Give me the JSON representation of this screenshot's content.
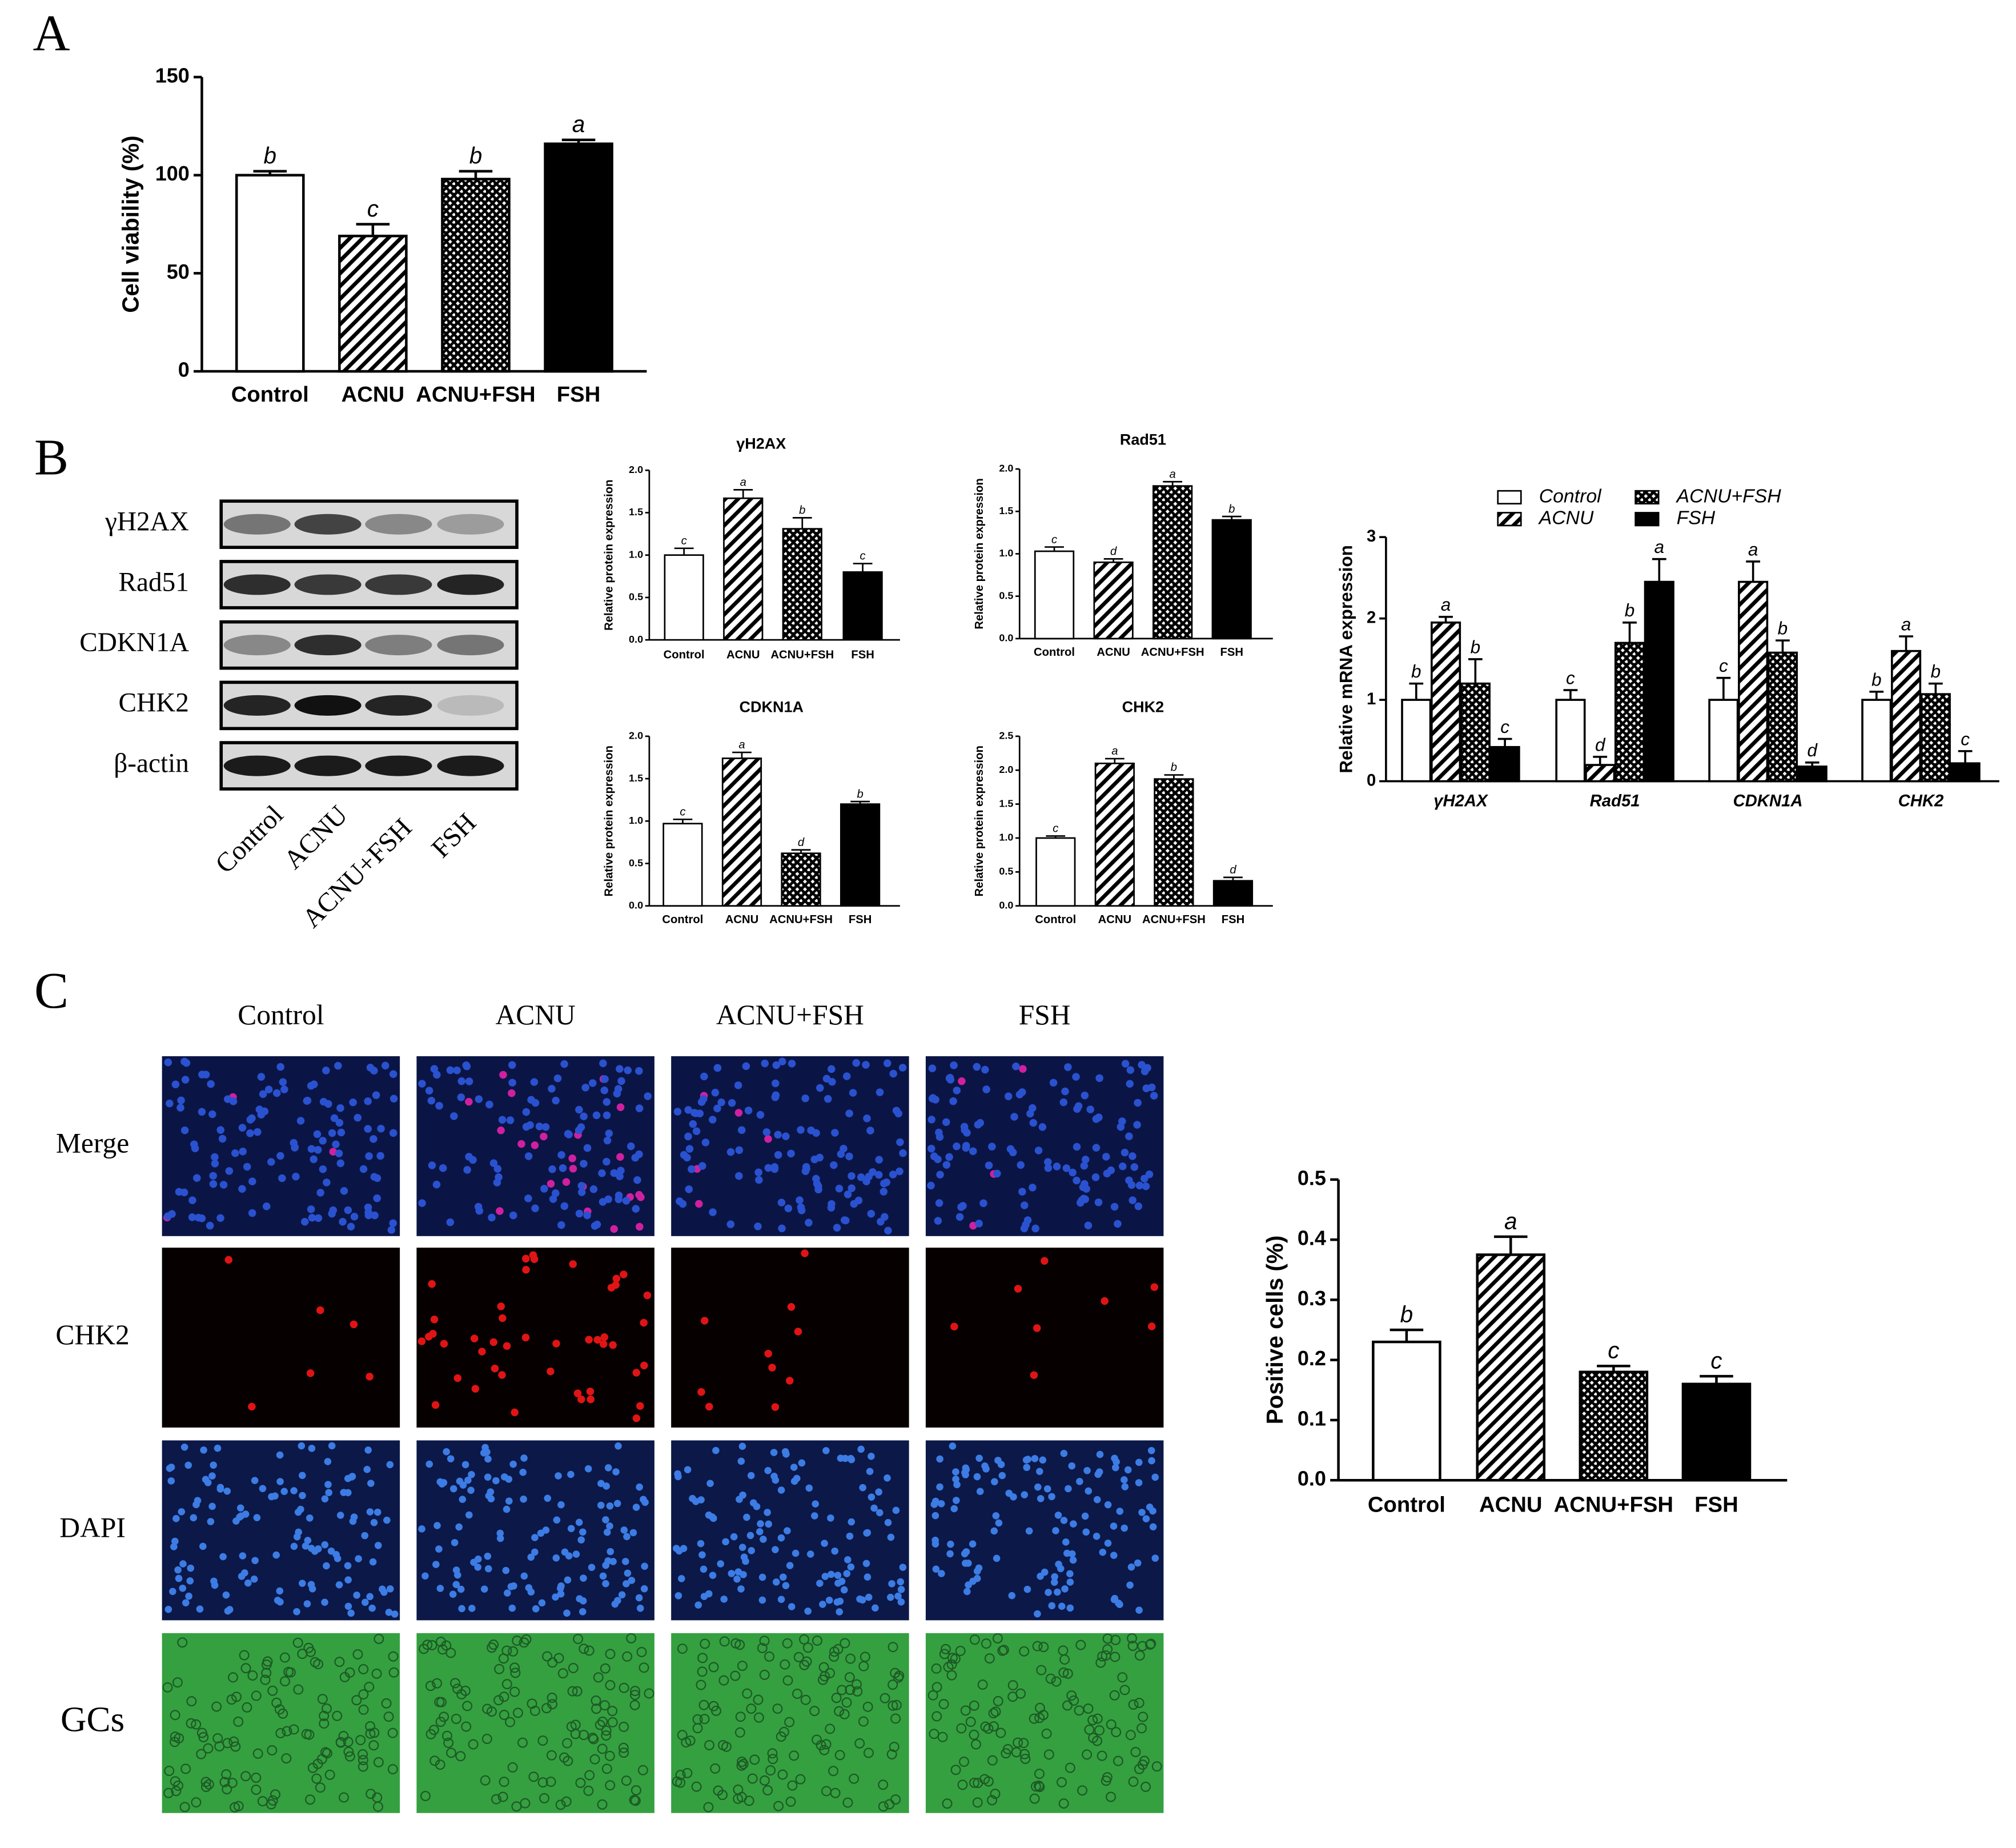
{
  "panel_labels": [
    "A",
    "B",
    "C"
  ],
  "western_blot": {
    "proteins": [
      "γH2AX",
      "Rad51",
      "CDKN1A",
      "CHK2",
      "β-actin"
    ],
    "lanes": [
      "Control",
      "ACNU",
      "ACNU+FSH",
      "FSH"
    ]
  },
  "micrographs": {
    "columns": [
      "Control",
      "ACNU",
      "ACNU+FSH",
      "FSH"
    ],
    "rows": [
      "Merge",
      "CHK2",
      "DAPI",
      "GCs"
    ]
  },
  "chart_data": [
    {
      "type": "bar",
      "y_label": "Cell viability (%)",
      "categories": [
        "Control",
        "ACNU",
        "ACNU+FSH",
        "FSH"
      ],
      "values": [
        100,
        69,
        98,
        116
      ],
      "errors": [
        2,
        6,
        4,
        2
      ],
      "letters": [
        "b",
        "c",
        "b",
        "a"
      ],
      "patterns": [
        "open",
        "hatch",
        "cross",
        "solid"
      ],
      "ylim": [
        0,
        150
      ],
      "yticks": [
        0,
        50,
        100,
        150
      ]
    },
    {
      "type": "bar",
      "title": "γH2AX",
      "y_label": "Relative protein expression",
      "categories": [
        "Control",
        "ACNU",
        "ACNU+FSH",
        "FSH"
      ],
      "values": [
        1.0,
        1.67,
        1.31,
        0.8
      ],
      "errors": [
        0.08,
        0.1,
        0.13,
        0.1
      ],
      "letters": [
        "c",
        "a",
        "b",
        "c"
      ],
      "patterns": [
        "open",
        "hatch",
        "cross",
        "solid"
      ],
      "ylim": [
        0,
        2
      ],
      "yticks": [
        {
          "value": 0,
          "label": "0.0"
        },
        0.5,
        {
          "value": 1,
          "label": "1.0"
        },
        1.5,
        {
          "value": 2,
          "label": "2.0"
        }
      ]
    },
    {
      "type": "bar",
      "title": "Rad51",
      "y_label": "Relative protein expression",
      "categories": [
        "Control",
        "ACNU",
        "ACNU+FSH",
        "FSH"
      ],
      "values": [
        1.03,
        0.9,
        1.8,
        1.4
      ],
      "errors": [
        0.05,
        0.04,
        0.05,
        0.04
      ],
      "letters": [
        "c",
        "d",
        "a",
        "b"
      ],
      "patterns": [
        "open",
        "hatch",
        "cross",
        "solid"
      ],
      "ylim": [
        0,
        2
      ],
      "yticks": [
        {
          "value": 0,
          "label": "0.0"
        },
        0.5,
        {
          "value": 1,
          "label": "1.0"
        },
        1.5,
        {
          "value": 2,
          "label": "2.0"
        }
      ]
    },
    {
      "type": "bar",
      "title": "CDKN1A",
      "y_label": "Relative protein expression",
      "categories": [
        "Control",
        "ACNU",
        "ACNU+FSH",
        "FSH"
      ],
      "values": [
        0.97,
        1.74,
        0.62,
        1.2
      ],
      "errors": [
        0.05,
        0.07,
        0.04,
        0.03
      ],
      "letters": [
        "c",
        "a",
        "d",
        "b"
      ],
      "patterns": [
        "open",
        "hatch",
        "cross",
        "solid"
      ],
      "ylim": [
        0,
        2
      ],
      "yticks": [
        {
          "value": 0,
          "label": "0.0"
        },
        0.5,
        {
          "value": 1,
          "label": "1.0"
        },
        1.5,
        {
          "value": 2,
          "label": "2.0"
        }
      ]
    },
    {
      "type": "bar",
      "title": "CHK2",
      "y_label": "Relative protein expression",
      "categories": [
        "Control",
        "ACNU",
        "ACNU+FSH",
        "FSH"
      ],
      "values": [
        1.0,
        2.1,
        1.87,
        0.37
      ],
      "errors": [
        0.03,
        0.07,
        0.06,
        0.05
      ],
      "letters": [
        "c",
        "a",
        "b",
        "d"
      ],
      "patterns": [
        "open",
        "hatch",
        "cross",
        "solid"
      ],
      "ylim": [
        0,
        2.5
      ],
      "yticks": [
        {
          "value": 0,
          "label": "0.0"
        },
        0.5,
        {
          "value": 1,
          "label": "1.0"
        },
        1.5,
        {
          "value": 2,
          "label": "2.0"
        },
        2.5
      ]
    },
    {
      "type": "grouped_bar",
      "y_label": "Relative mRNA expression",
      "categories": [
        "γH2AX",
        "Rad51",
        "CDKN1A",
        "CHK2"
      ],
      "series": [
        {
          "name": "Control",
          "pattern": "open",
          "values": [
            1.0,
            1.0,
            1.0,
            1.0
          ],
          "errors": [
            0.2,
            0.12,
            0.27,
            0.1
          ],
          "letters": [
            "b",
            "c",
            "c",
            "b"
          ]
        },
        {
          "name": "ACNU",
          "pattern": "hatch",
          "values": [
            1.95,
            0.2,
            2.45,
            1.6
          ],
          "errors": [
            0.07,
            0.1,
            0.25,
            0.18
          ],
          "letters": [
            "a",
            "d",
            "a",
            "a"
          ]
        },
        {
          "name": "ACNU+FSH",
          "pattern": "cross",
          "values": [
            1.2,
            1.7,
            1.58,
            1.07
          ],
          "errors": [
            0.3,
            0.25,
            0.15,
            0.13
          ],
          "letters": [
            "b",
            "b",
            "b",
            "b"
          ]
        },
        {
          "name": "FSH",
          "pattern": "solid",
          "values": [
            0.42,
            2.45,
            0.18,
            0.22
          ],
          "errors": [
            0.1,
            0.28,
            0.05,
            0.15
          ],
          "letters": [
            "c",
            "a",
            "d",
            "c"
          ]
        }
      ],
      "ylim": [
        0,
        3
      ],
      "yticks": [
        0,
        1,
        2,
        3
      ]
    },
    {
      "type": "bar",
      "y_label": "Positive cells (%)",
      "categories": [
        "Control",
        "ACNU",
        "ACNU+FSH",
        "FSH"
      ],
      "values": [
        0.23,
        0.375,
        0.18,
        0.16
      ],
      "errors": [
        0.02,
        0.03,
        0.01,
        0.013
      ],
      "letters": [
        "b",
        "a",
        "c",
        "c"
      ],
      "patterns": [
        "open",
        "hatch",
        "cross",
        "solid"
      ],
      "ylim": [
        0,
        0.5
      ],
      "yticks": [
        {
          "value": 0,
          "label": "0.0"
        },
        0.1,
        0.2,
        0.3,
        0.4,
        0.5
      ]
    }
  ]
}
